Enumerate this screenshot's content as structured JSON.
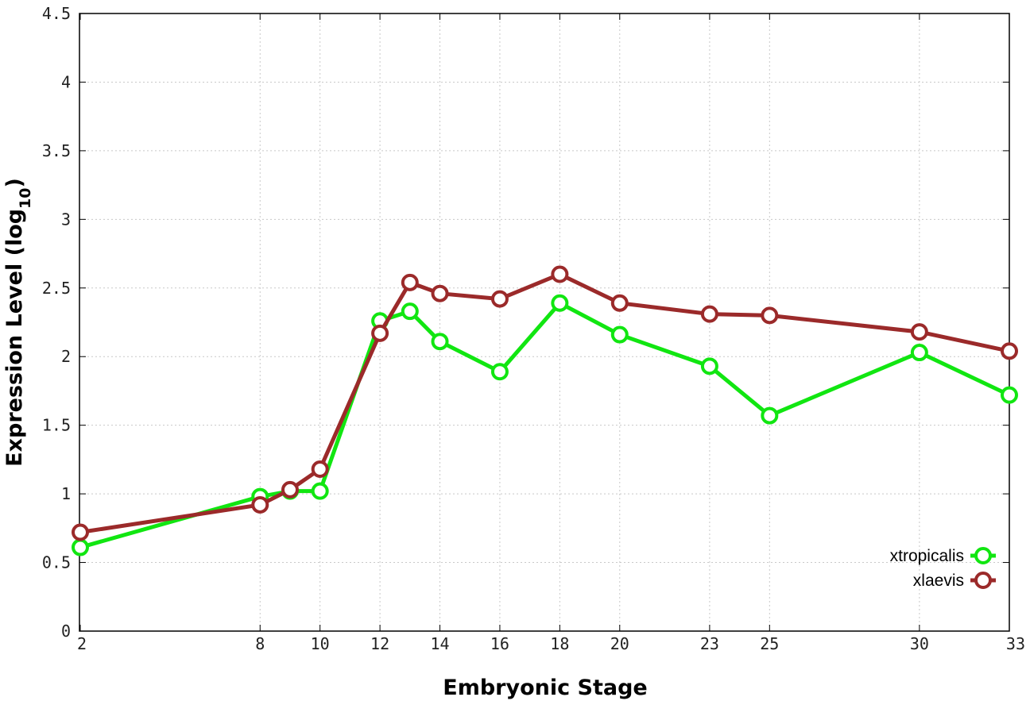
{
  "chart_data": {
    "type": "line",
    "xlabel": "Embryonic Stage",
    "ylabel_main": "Expression Level (log",
    "ylabel_sub": "10",
    "ylabel_close": ")",
    "x_ticks": [
      "2",
      "8",
      "10",
      "12",
      "14",
      "16",
      "18",
      "20",
      "23",
      "25",
      "30",
      "33"
    ],
    "y_ticks": [
      "0",
      "0.5",
      "1",
      "1.5",
      "2",
      "2.5",
      "3",
      "3.5",
      "4",
      "4.5"
    ],
    "ylim": [
      0,
      4.5
    ],
    "grid": true,
    "legend_position": "bottom-right",
    "series": [
      {
        "name": "xtropicalis",
        "color": "#11e611",
        "points": [
          {
            "x": 2,
            "y": 0.61
          },
          {
            "x": 8,
            "y": 0.98
          },
          {
            "x": 9,
            "y": 1.02
          },
          {
            "x": 10,
            "y": 1.02
          },
          {
            "x": 12,
            "y": 2.26
          },
          {
            "x": 13,
            "y": 2.33
          },
          {
            "x": 14,
            "y": 2.11
          },
          {
            "x": 16,
            "y": 1.89
          },
          {
            "x": 18,
            "y": 2.39
          },
          {
            "x": 20,
            "y": 2.16
          },
          {
            "x": 23,
            "y": 1.93
          },
          {
            "x": 25,
            "y": 1.57
          },
          {
            "x": 30,
            "y": 2.03
          },
          {
            "x": 33,
            "y": 1.72
          }
        ]
      },
      {
        "name": "xlaevis",
        "color": "#9b2a2a",
        "points": [
          {
            "x": 2,
            "y": 0.72
          },
          {
            "x": 8,
            "y": 0.92
          },
          {
            "x": 9,
            "y": 1.03
          },
          {
            "x": 10,
            "y": 1.18
          },
          {
            "x": 12,
            "y": 2.17
          },
          {
            "x": 13,
            "y": 2.54
          },
          {
            "x": 14,
            "y": 2.46
          },
          {
            "x": 16,
            "y": 2.42
          },
          {
            "x": 18,
            "y": 2.6
          },
          {
            "x": 20,
            "y": 2.39
          },
          {
            "x": 23,
            "y": 2.31
          },
          {
            "x": 25,
            "y": 2.3
          },
          {
            "x": 30,
            "y": 2.18
          },
          {
            "x": 33,
            "y": 2.04
          }
        ]
      }
    ]
  }
}
